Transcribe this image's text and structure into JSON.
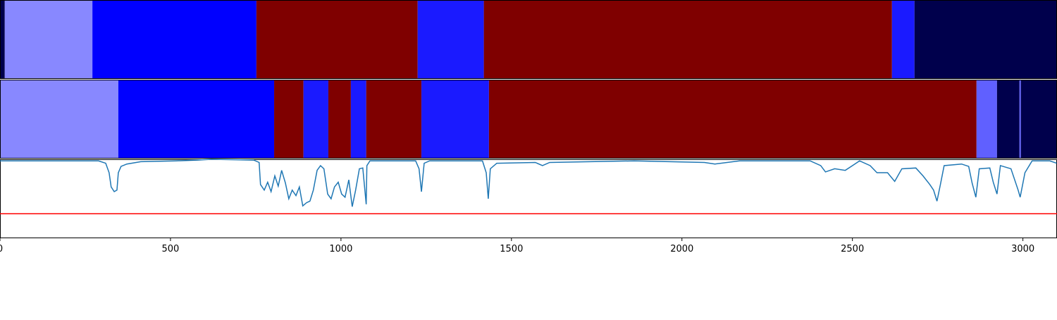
{
  "chart_data": {
    "type": "line",
    "xlim": [
      0,
      3100
    ],
    "xticks": [
      0,
      500,
      1000,
      1500,
      2000,
      2500,
      3000
    ],
    "ylim": [
      0,
      1
    ],
    "tracks": [
      {
        "segments": [
          {
            "start": 0,
            "end": 14,
            "color": "#00004c"
          },
          {
            "start": 14,
            "end": 271,
            "color": "#8888ff"
          },
          {
            "start": 271,
            "end": 752,
            "color": "#0000ff"
          },
          {
            "start": 752,
            "end": 1225,
            "color": "#7f0000"
          },
          {
            "start": 1225,
            "end": 1419,
            "color": "#1a1aff"
          },
          {
            "start": 1419,
            "end": 2616,
            "color": "#7f0000"
          },
          {
            "start": 2616,
            "end": 2682,
            "color": "#1a1aff"
          },
          {
            "start": 2682,
            "end": 3100,
            "color": "#00004c"
          }
        ]
      },
      {
        "segments": [
          {
            "start": 0,
            "end": 347,
            "color": "#8888ff"
          },
          {
            "start": 347,
            "end": 804,
            "color": "#0000ff"
          },
          {
            "start": 804,
            "end": 890,
            "color": "#7f0000"
          },
          {
            "start": 890,
            "end": 963,
            "color": "#1a1aff"
          },
          {
            "start": 963,
            "end": 1029,
            "color": "#7f0000"
          },
          {
            "start": 1029,
            "end": 1074,
            "color": "#1a1aff"
          },
          {
            "start": 1074,
            "end": 1236,
            "color": "#7f0000"
          },
          {
            "start": 1236,
            "end": 1434,
            "color": "#1a1aff"
          },
          {
            "start": 1434,
            "end": 2864,
            "color": "#7f0000"
          },
          {
            "start": 2864,
            "end": 2924,
            "color": "#6060ff"
          },
          {
            "start": 2924,
            "end": 2990,
            "color": "#00004c"
          },
          {
            "start": 2990,
            "end": 2994,
            "color": "#6060ff"
          },
          {
            "start": 2994,
            "end": 3100,
            "color": "#00004c"
          }
        ]
      }
    ],
    "series": [
      {
        "color": "#1f77b4",
        "x": [
          0,
          207,
          289,
          310,
          320,
          326,
          335,
          343,
          347,
          355,
          372,
          413,
          517,
          579,
          620,
          744,
          760,
          764,
          775,
          785,
          795,
          806,
          816,
          826,
          837,
          847,
          857,
          868,
          878,
          888,
          899,
          909,
          919,
          930,
          940,
          950,
          961,
          971,
          981,
          992,
          1002,
          1012,
          1023,
          1033,
          1043,
          1054,
          1064,
          1074,
          1076,
          1085,
          1219,
          1229,
          1236,
          1244,
          1260,
          1415,
          1426,
          1432,
          1438,
          1457,
          1570,
          1591,
          1612,
          1860,
          2066,
          2097,
          2169,
          2376,
          2407,
          2421,
          2448,
          2479,
          2500,
          2521,
          2552,
          2572,
          2603,
          2624,
          2645,
          2686,
          2707,
          2727,
          2738,
          2748,
          2758,
          2769,
          2820,
          2841,
          2851,
          2862,
          2872,
          2903,
          2913,
          2924,
          2934,
          2965,
          2986,
          2992,
          3006,
          3027,
          3079,
          3099
        ],
        "values": [
          0.98,
          0.98,
          0.98,
          0.95,
          0.83,
          0.65,
          0.59,
          0.61,
          0.83,
          0.91,
          0.94,
          0.97,
          0.98,
          0.99,
          1.0,
          0.99,
          0.96,
          0.68,
          0.61,
          0.71,
          0.59,
          0.79,
          0.66,
          0.86,
          0.7,
          0.5,
          0.61,
          0.54,
          0.65,
          0.41,
          0.45,
          0.47,
          0.61,
          0.86,
          0.92,
          0.88,
          0.56,
          0.5,
          0.65,
          0.71,
          0.56,
          0.52,
          0.74,
          0.4,
          0.61,
          0.88,
          0.89,
          0.43,
          0.92,
          0.98,
          0.98,
          0.88,
          0.59,
          0.95,
          0.98,
          0.98,
          0.83,
          0.5,
          0.88,
          0.95,
          0.96,
          0.92,
          0.96,
          0.98,
          0.96,
          0.94,
          0.98,
          0.98,
          0.92,
          0.84,
          0.88,
          0.86,
          0.92,
          0.98,
          0.92,
          0.83,
          0.83,
          0.72,
          0.88,
          0.89,
          0.79,
          0.68,
          0.61,
          0.47,
          0.68,
          0.92,
          0.94,
          0.91,
          0.7,
          0.52,
          0.88,
          0.89,
          0.71,
          0.56,
          0.92,
          0.88,
          0.61,
          0.52,
          0.83,
          0.98,
          0.98,
          0.95
        ]
      }
    ],
    "threshold": {
      "value": 0.31,
      "color": "#ff0000"
    }
  }
}
